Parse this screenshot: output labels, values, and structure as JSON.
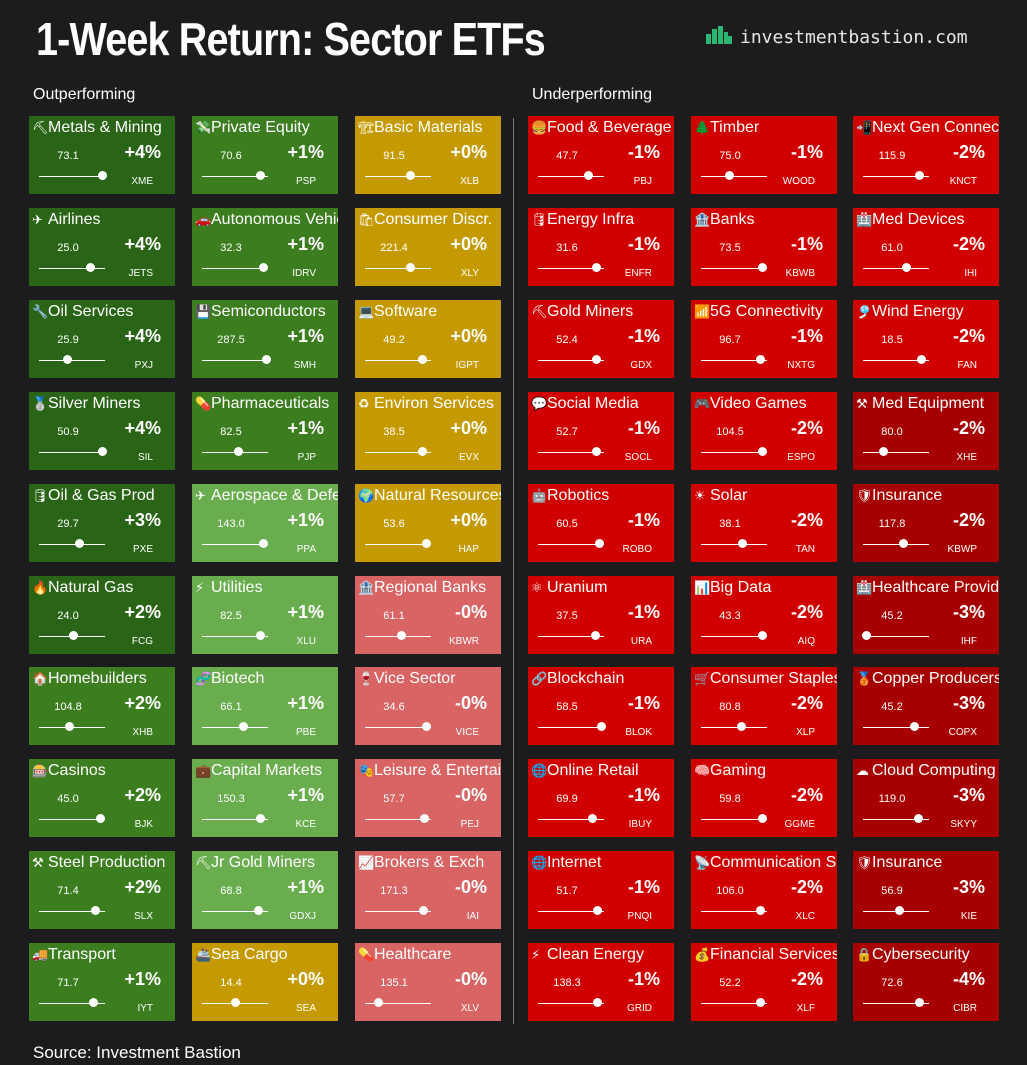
{
  "title": "1-Week Return: Sector ETFs",
  "brand": {
    "text": "investmentbastion.com",
    "icon": "city-skyline-icon",
    "icon_color": "#2bb673"
  },
  "sections": {
    "outperforming": "Outperforming",
    "underperforming": "Underperforming"
  },
  "source": "Source: Investment Bastion",
  "colors": {
    "dark_green": "#2a6517",
    "green": "#3b7d1f",
    "light_green": "#6aad4e",
    "gold": "#c59a00",
    "pink": "#d86464",
    "red": "#d10000",
    "dark_red": "#a70000"
  },
  "chart_data": {
    "type": "heatmap",
    "metric": "1-week return",
    "columns": [
      {
        "group": "Outperforming",
        "tiles": [
          {
            "name": "Metals & Mining",
            "icon": "⛏",
            "price": "73.1",
            "return": "+4%",
            "ticker": "XME",
            "color": "dark_green",
            "slider": 0.95
          },
          {
            "name": "Airlines",
            "icon": "✈",
            "price": "25.0",
            "return": "+4%",
            "ticker": "JETS",
            "color": "dark_green",
            "slider": 0.78
          },
          {
            "name": "Oil Services",
            "icon": "🔧",
            "price": "25.9",
            "return": "+4%",
            "ticker": "PXJ",
            "color": "dark_green",
            "slider": 0.42
          },
          {
            "name": "Silver Miners",
            "icon": "🥈",
            "price": "50.9",
            "return": "+4%",
            "ticker": "SIL",
            "color": "dark_green",
            "slider": 0.96
          },
          {
            "name": "Oil & Gas Prod",
            "icon": "🛢",
            "price": "29.7",
            "return": "+3%",
            "ticker": "PXE",
            "color": "dark_green",
            "slider": 0.6
          },
          {
            "name": "Natural Gas",
            "icon": "🔥",
            "price": "24.0",
            "return": "+2%",
            "ticker": "FCG",
            "color": "dark_green",
            "slider": 0.52
          },
          {
            "name": "Homebuilders",
            "icon": "🏠",
            "price": "104.8",
            "return": "+2%",
            "ticker": "XHB",
            "color": "green",
            "slider": 0.45
          },
          {
            "name": "Casinos",
            "icon": "🎰",
            "price": "45.0",
            "return": "+2%",
            "ticker": "BJK",
            "color": "green",
            "slider": 0.92
          },
          {
            "name": "Steel Production",
            "icon": "⚒",
            "price": "71.4",
            "return": "+2%",
            "ticker": "SLX",
            "color": "green",
            "slider": 0.85
          },
          {
            "name": "Transport",
            "icon": "🚚",
            "price": "71.7",
            "return": "+1%",
            "ticker": "IYT",
            "color": "green",
            "slider": 0.82
          }
        ]
      },
      {
        "group": "Outperforming",
        "tiles": [
          {
            "name": "Private Equity",
            "icon": "💸",
            "price": "70.6",
            "return": "+1%",
            "ticker": "PSP",
            "color": "green",
            "slider": 0.88
          },
          {
            "name": "Autonomous Vehicles",
            "icon": "🚗",
            "price": "32.3",
            "return": "+1%",
            "ticker": "IDRV",
            "color": "green",
            "slider": 0.93
          },
          {
            "name": "Semiconductors",
            "icon": "💾",
            "price": "287.5",
            "return": "+1%",
            "ticker": "SMH",
            "color": "green",
            "slider": 0.97
          },
          {
            "name": "Pharmaceuticals",
            "icon": "💊",
            "price": "82.5",
            "return": "+1%",
            "ticker": "PJP",
            "color": "green",
            "slider": 0.55
          },
          {
            "name": "Aerospace & Defense",
            "icon": "✈",
            "price": "143.0",
            "return": "+1%",
            "ticker": "PPA",
            "color": "light_green",
            "slider": 0.92
          },
          {
            "name": "Utilities",
            "icon": "⚡",
            "price": "82.5",
            "return": "+1%",
            "ticker": "XLU",
            "color": "light_green",
            "slider": 0.88
          },
          {
            "name": "Biotech",
            "icon": "🧬",
            "price": "66.1",
            "return": "+1%",
            "ticker": "PBE",
            "color": "light_green",
            "slider": 0.62
          },
          {
            "name": "Capital Markets",
            "icon": "💼",
            "price": "150.3",
            "return": "+1%",
            "ticker": "KCE",
            "color": "light_green",
            "slider": 0.88
          },
          {
            "name": "Jr Gold Miners",
            "icon": "⛏",
            "price": "68.8",
            "return": "+1%",
            "ticker": "GDXJ",
            "color": "light_green",
            "slider": 0.85
          },
          {
            "name": "Sea Cargo",
            "icon": "🚢",
            "price": "14.4",
            "return": "+0%",
            "ticker": "SEA",
            "color": "gold",
            "slider": 0.5
          }
        ]
      },
      {
        "group": "Outperforming",
        "tiles": [
          {
            "name": "Basic Materials",
            "icon": "🏗",
            "price": "91.5",
            "return": "+0%",
            "ticker": "XLB",
            "color": "gold",
            "slider": 0.68
          },
          {
            "name": "Consumer Discr.",
            "icon": "🛍",
            "price": "221.4",
            "return": "+0%",
            "ticker": "XLY",
            "color": "gold",
            "slider": 0.68
          },
          {
            "name": "Software",
            "icon": "💻",
            "price": "49.2",
            "return": "+0%",
            "ticker": "IGPT",
            "color": "gold",
            "slider": 0.87
          },
          {
            "name": "Environ Services",
            "icon": "♻",
            "price": "38.5",
            "return": "+0%",
            "ticker": "EVX",
            "color": "gold",
            "slider": 0.87
          },
          {
            "name": "Natural Resources",
            "icon": "🌍",
            "price": "53.6",
            "return": "+0%",
            "ticker": "HAP",
            "color": "gold",
            "slider": 0.93
          },
          {
            "name": "Regional Banks",
            "icon": "🏦",
            "price": "61.1",
            "return": "-0%",
            "ticker": "KBWR",
            "color": "pink",
            "slider": 0.55
          },
          {
            "name": "Vice Sector",
            "icon": "🍷",
            "price": "34.6",
            "return": "-0%",
            "ticker": "VICE",
            "color": "pink",
            "slider": 0.93
          },
          {
            "name": "Leisure & Entertainment",
            "icon": "🎭",
            "price": "57.7",
            "return": "-0%",
            "ticker": "PEJ",
            "color": "pink",
            "slider": 0.9
          },
          {
            "name": "Brokers & Exch",
            "icon": "📈",
            "price": "171.3",
            "return": "-0%",
            "ticker": "IAI",
            "color": "pink",
            "slider": 0.88
          },
          {
            "name": "Healthcare",
            "icon": "💊",
            "price": "135.1",
            "return": "-0%",
            "ticker": "XLV",
            "color": "pink",
            "slider": 0.2
          }
        ]
      },
      {
        "group": "Underperforming",
        "tiles": [
          {
            "name": "Food & Beverage",
            "icon": "🍔",
            "price": "47.7",
            "return": "-1%",
            "ticker": "PBJ",
            "color": "red",
            "slider": 0.75
          },
          {
            "name": "Energy Infra",
            "icon": "🛢",
            "price": "31.6",
            "return": "-1%",
            "ticker": "ENFR",
            "color": "red",
            "slider": 0.88
          },
          {
            "name": "Gold Miners",
            "icon": "⛏",
            "price": "52.4",
            "return": "-1%",
            "ticker": "GDX",
            "color": "red",
            "slider": 0.88
          },
          {
            "name": "Social Media",
            "icon": "💬",
            "price": "52.7",
            "return": "-1%",
            "ticker": "SOCL",
            "color": "red",
            "slider": 0.88
          },
          {
            "name": "Robotics",
            "icon": "🤖",
            "price": "60.5",
            "return": "-1%",
            "ticker": "ROBO",
            "color": "red",
            "slider": 0.92
          },
          {
            "name": "Uranium",
            "icon": "⚛",
            "price": "37.5",
            "return": "-1%",
            "ticker": "URA",
            "color": "red",
            "slider": 0.87
          },
          {
            "name": "Blockchain",
            "icon": "🔗",
            "price": "58.5",
            "return": "-1%",
            "ticker": "BLOK",
            "color": "red",
            "slider": 0.96
          },
          {
            "name": "Online Retail",
            "icon": "🌐",
            "price": "69.9",
            "return": "-1%",
            "ticker": "IBUY",
            "color": "red",
            "slider": 0.82
          },
          {
            "name": "Internet",
            "icon": "🌐",
            "price": "51.7",
            "return": "-1%",
            "ticker": "PNQI",
            "color": "red",
            "slider": 0.9
          },
          {
            "name": "Clean Energy",
            "icon": "⚡",
            "price": "138.3",
            "return": "-1%",
            "ticker": "GRID",
            "color": "red",
            "slider": 0.9
          }
        ]
      },
      {
        "group": "Underperforming",
        "tiles": [
          {
            "name": "Timber",
            "icon": "🌲",
            "price": "75.0",
            "return": "-1%",
            "ticker": "WOOD",
            "color": "red",
            "slider": 0.42
          },
          {
            "name": "Banks",
            "icon": "🏦",
            "price": "73.5",
            "return": "-1%",
            "ticker": "KBWB",
            "color": "red",
            "slider": 0.93
          },
          {
            "name": "5G Connectivity",
            "icon": "📶",
            "price": "96.7",
            "return": "-1%",
            "ticker": "NXTG",
            "color": "red",
            "slider": 0.9
          },
          {
            "name": "Video Games",
            "icon": "🎮",
            "price": "104.5",
            "return": "-2%",
            "ticker": "ESPO",
            "color": "red",
            "slider": 0.92
          },
          {
            "name": "Solar",
            "icon": "☀",
            "price": "38.1",
            "return": "-2%",
            "ticker": "TAN",
            "color": "red",
            "slider": 0.62
          },
          {
            "name": "Big Data",
            "icon": "📊",
            "price": "43.3",
            "return": "-2%",
            "ticker": "AIQ",
            "color": "red",
            "slider": 0.93
          },
          {
            "name": "Consumer Staples",
            "icon": "🛒",
            "price": "80.8",
            "return": "-2%",
            "ticker": "XLP",
            "color": "red",
            "slider": 0.6
          },
          {
            "name": "Gaming",
            "icon": "🧠",
            "price": "59.8",
            "return": "-2%",
            "ticker": "GGME",
            "color": "red",
            "slider": 0.92
          },
          {
            "name": "Communication Services",
            "icon": "📡",
            "price": "106.0",
            "return": "-2%",
            "ticker": "XLC",
            "color": "red",
            "slider": 0.9
          },
          {
            "name": "Financial Services",
            "icon": "💰",
            "price": "52.2",
            "return": "-2%",
            "ticker": "XLF",
            "color": "red",
            "slider": 0.9
          }
        ]
      },
      {
        "group": "Underperforming",
        "tiles": [
          {
            "name": "Next Gen Connectivity",
            "icon": "📲",
            "price": "115.9",
            "return": "-2%",
            "ticker": "KNCT",
            "color": "red",
            "slider": 0.85
          },
          {
            "name": "Med Devices",
            "icon": "🏥",
            "price": "61.0",
            "return": "-2%",
            "ticker": "IHI",
            "color": "red",
            "slider": 0.65
          },
          {
            "name": "Wind Energy",
            "icon": "🎐",
            "price": "18.5",
            "return": "-2%",
            "ticker": "FAN",
            "color": "red",
            "slider": 0.88
          },
          {
            "name": "Med Equipment",
            "icon": "⚒",
            "price": "80.0",
            "return": "-2%",
            "ticker": "XHE",
            "color": "dark_red",
            "slider": 0.3
          },
          {
            "name": "Insurance",
            "icon": "🛡",
            "price": "117.8",
            "return": "-2%",
            "ticker": "KBWP",
            "color": "dark_red",
            "slider": 0.6
          },
          {
            "name": "Healthcare Providers",
            "icon": "🏥",
            "price": "45.2",
            "return": "-3%",
            "ticker": "IHF",
            "color": "dark_red",
            "slider": 0.05
          },
          {
            "name": "Copper Producers",
            "icon": "🥉",
            "price": "45.2",
            "return": "-3%",
            "ticker": "COPX",
            "color": "dark_red",
            "slider": 0.78
          },
          {
            "name": "Cloud Computing",
            "icon": "☁",
            "price": "119.0",
            "return": "-3%",
            "ticker": "SKYY",
            "color": "dark_red",
            "slider": 0.83
          },
          {
            "name": "Insurance",
            "icon": "🛡",
            "price": "56.9",
            "return": "-3%",
            "ticker": "KIE",
            "color": "dark_red",
            "slider": 0.55
          },
          {
            "name": "Cybersecurity",
            "icon": "🔒",
            "price": "72.6",
            "return": "-4%",
            "ticker": "CIBR",
            "color": "dark_red",
            "slider": 0.85
          }
        ]
      }
    ]
  }
}
